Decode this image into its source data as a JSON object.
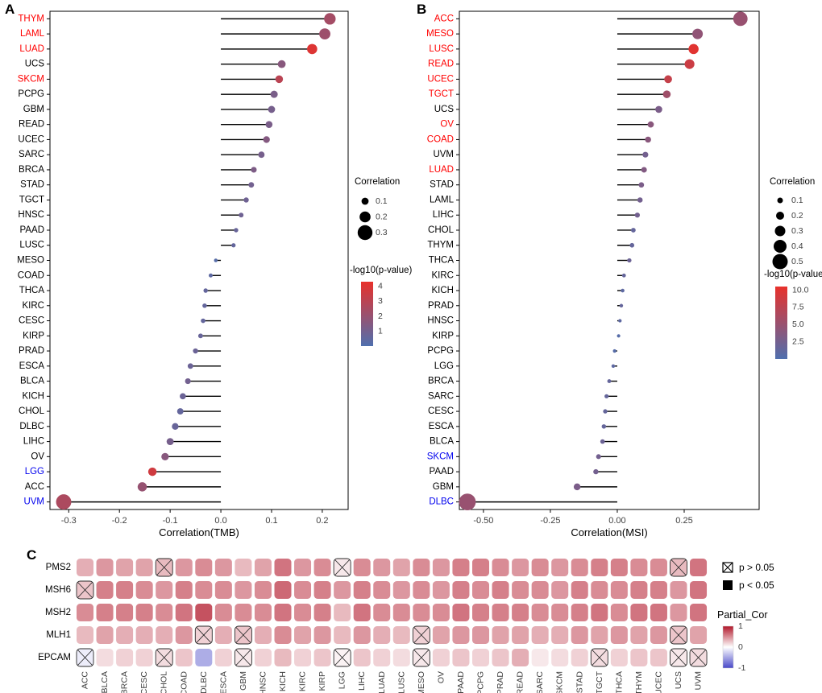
{
  "labels": {
    "panel_a": "A",
    "panel_b": "B",
    "panel_c": "C"
  },
  "palette": {
    "label_red": "#ff0000",
    "label_blue": "#0000ee",
    "label_black": "#000000",
    "dot_low": "#4f6fae",
    "dot_high": "#e8312b",
    "heat_pos": "#b2182b",
    "heat_neg": "#4848c8",
    "axis_text": "#404040",
    "stem": "#000000"
  },
  "chart_data": [
    {
      "id": "A",
      "type": "lollipop",
      "xlabel": "Correlation(TMB)",
      "xticks": [
        -0.3,
        -0.2,
        -0.1,
        0.0,
        0.1,
        0.2
      ],
      "xtick_labels": [
        "-0.3",
        "-0.2",
        "-0.1",
        "0.0",
        "0.1",
        "0.2"
      ],
      "xlim": [
        -0.337,
        0.251
      ],
      "size_legend": {
        "title": "Correlation",
        "values": [
          0.1,
          0.2,
          0.3
        ],
        "labels": [
          "0.1",
          "0.2",
          "0.3"
        ]
      },
      "color_legend": {
        "title": "-log10(p-value)",
        "ticks": [
          4,
          3,
          2,
          1
        ],
        "labels": [
          "4",
          "3",
          "2",
          "1"
        ],
        "domain": [
          0,
          4.3
        ]
      },
      "points": [
        {
          "label": "THYM",
          "group": "red",
          "value": 0.215,
          "logp": 2.4
        },
        {
          "label": "LAML",
          "group": "red",
          "value": 0.205,
          "logp": 2.2
        },
        {
          "label": "LUAD",
          "group": "red",
          "value": 0.18,
          "logp": 4.0
        },
        {
          "label": "UCS",
          "group": "black",
          "value": 0.12,
          "logp": 1.6
        },
        {
          "label": "SKCM",
          "group": "red",
          "value": 0.115,
          "logp": 3.0
        },
        {
          "label": "PCPG",
          "group": "black",
          "value": 0.105,
          "logp": 1.2
        },
        {
          "label": "GBM",
          "group": "black",
          "value": 0.1,
          "logp": 1.1
        },
        {
          "label": "READ",
          "group": "black",
          "value": 0.095,
          "logp": 1.2
        },
        {
          "label": "UCEC",
          "group": "black",
          "value": 0.09,
          "logp": 1.5
        },
        {
          "label": "SARC",
          "group": "black",
          "value": 0.08,
          "logp": 1.1
        },
        {
          "label": "BRCA",
          "group": "black",
          "value": 0.065,
          "logp": 1.3
        },
        {
          "label": "STAD",
          "group": "black",
          "value": 0.06,
          "logp": 1.0
        },
        {
          "label": "TGCT",
          "group": "black",
          "value": 0.05,
          "logp": 0.9
        },
        {
          "label": "HNSC",
          "group": "black",
          "value": 0.04,
          "logp": 0.9
        },
        {
          "label": "PAAD",
          "group": "black",
          "value": 0.03,
          "logp": 0.7
        },
        {
          "label": "LUSC",
          "group": "black",
          "value": 0.025,
          "logp": 0.6
        },
        {
          "label": "MESO",
          "group": "black",
          "value": -0.01,
          "logp": 0.2
        },
        {
          "label": "COAD",
          "group": "black",
          "value": -0.02,
          "logp": 0.4
        },
        {
          "label": "THCA",
          "group": "black",
          "value": -0.03,
          "logp": 0.6
        },
        {
          "label": "KIRC",
          "group": "black",
          "value": -0.032,
          "logp": 0.6
        },
        {
          "label": "CESC",
          "group": "black",
          "value": -0.035,
          "logp": 0.6
        },
        {
          "label": "KIRP",
          "group": "black",
          "value": -0.04,
          "logp": 0.7
        },
        {
          "label": "PRAD",
          "group": "black",
          "value": -0.05,
          "logp": 0.8
        },
        {
          "label": "ESCA",
          "group": "black",
          "value": -0.06,
          "logp": 0.8
        },
        {
          "label": "BLCA",
          "group": "black",
          "value": -0.065,
          "logp": 1.0
        },
        {
          "label": "KICH",
          "group": "black",
          "value": -0.075,
          "logp": 0.8
        },
        {
          "label": "CHOL",
          "group": "black",
          "value": -0.08,
          "logp": 0.6
        },
        {
          "label": "DLBC",
          "group": "black",
          "value": -0.09,
          "logp": 0.7
        },
        {
          "label": "LIHC",
          "group": "black",
          "value": -0.1,
          "logp": 1.1
        },
        {
          "label": "OV",
          "group": "black",
          "value": -0.11,
          "logp": 1.6
        },
        {
          "label": "LGG",
          "group": "blue",
          "value": -0.135,
          "logp": 3.6
        },
        {
          "label": "ACC",
          "group": "black",
          "value": -0.155,
          "logp": 2.0
        },
        {
          "label": "UVM",
          "group": "blue",
          "value": -0.31,
          "logp": 2.6
        }
      ]
    },
    {
      "id": "B",
      "type": "lollipop",
      "xlabel": "Correlation(MSI)",
      "xticks": [
        -0.5,
        -0.25,
        0.0,
        0.25
      ],
      "xtick_labels": [
        "-0.50",
        "-0.25",
        "0.00",
        "0.25"
      ],
      "xlim": [
        -0.59,
        0.53
      ],
      "size_legend": {
        "title": "Correlation",
        "values": [
          0.1,
          0.2,
          0.3,
          0.4,
          0.5
        ],
        "labels": [
          "0.1",
          "0.2",
          "0.3",
          "0.4",
          "0.5"
        ]
      },
      "color_legend": {
        "title": "-log10(p-value)",
        "ticks": [
          10.0,
          7.5,
          5.0,
          2.5
        ],
        "labels": [
          "10.0",
          "7.5",
          "5.0",
          "2.5"
        ],
        "domain": [
          0,
          10.5
        ]
      },
      "points": [
        {
          "label": "ACC",
          "group": "red",
          "value": 0.46,
          "logp": 5.0
        },
        {
          "label": "MESO",
          "group": "red",
          "value": 0.3,
          "logp": 4.5
        },
        {
          "label": "LUSC",
          "group": "red",
          "value": 0.285,
          "logp": 10.0
        },
        {
          "label": "READ",
          "group": "red",
          "value": 0.27,
          "logp": 8.5
        },
        {
          "label": "UCEC",
          "group": "red",
          "value": 0.19,
          "logp": 8.0
        },
        {
          "label": "TGCT",
          "group": "red",
          "value": 0.185,
          "logp": 5.5
        },
        {
          "label": "UCS",
          "group": "black",
          "value": 0.155,
          "logp": 3.0
        },
        {
          "label": "OV",
          "group": "red",
          "value": 0.125,
          "logp": 4.0
        },
        {
          "label": "COAD",
          "group": "red",
          "value": 0.115,
          "logp": 4.0
        },
        {
          "label": "UVM",
          "group": "black",
          "value": 0.105,
          "logp": 2.5
        },
        {
          "label": "LUAD",
          "group": "red",
          "value": 0.1,
          "logp": 3.5
        },
        {
          "label": "STAD",
          "group": "black",
          "value": 0.09,
          "logp": 3.0
        },
        {
          "label": "LAML",
          "group": "black",
          "value": 0.085,
          "logp": 2.5
        },
        {
          "label": "LIHC",
          "group": "black",
          "value": 0.075,
          "logp": 2.5
        },
        {
          "label": "CHOL",
          "group": "black",
          "value": 0.06,
          "logp": 1.5
        },
        {
          "label": "THYM",
          "group": "black",
          "value": 0.055,
          "logp": 1.5
        },
        {
          "label": "THCA",
          "group": "black",
          "value": 0.045,
          "logp": 2.0
        },
        {
          "label": "KIRC",
          "group": "black",
          "value": 0.025,
          "logp": 1.5
        },
        {
          "label": "KICH",
          "group": "black",
          "value": 0.02,
          "logp": 1.0
        },
        {
          "label": "PRAD",
          "group": "black",
          "value": 0.015,
          "logp": 1.5
        },
        {
          "label": "HNSC",
          "group": "black",
          "value": 0.01,
          "logp": 1.0
        },
        {
          "label": "KIRP",
          "group": "black",
          "value": 0.005,
          "logp": 0.5
        },
        {
          "label": "PCPG",
          "group": "black",
          "value": -0.01,
          "logp": 0.5
        },
        {
          "label": "LGG",
          "group": "black",
          "value": -0.015,
          "logp": 1.0
        },
        {
          "label": "BRCA",
          "group": "black",
          "value": -0.03,
          "logp": 1.5
        },
        {
          "label": "SARC",
          "group": "black",
          "value": -0.04,
          "logp": 1.5
        },
        {
          "label": "CESC",
          "group": "black",
          "value": -0.045,
          "logp": 1.5
        },
        {
          "label": "ESCA",
          "group": "black",
          "value": -0.05,
          "logp": 1.5
        },
        {
          "label": "BLCA",
          "group": "black",
          "value": -0.055,
          "logp": 2.0
        },
        {
          "label": "SKCM",
          "group": "blue",
          "value": -0.07,
          "logp": 2.5
        },
        {
          "label": "PAAD",
          "group": "black",
          "value": -0.08,
          "logp": 2.5
        },
        {
          "label": "GBM",
          "group": "black",
          "value": -0.15,
          "logp": 3.0
        },
        {
          "label": "DLBC",
          "group": "blue",
          "value": -0.56,
          "logp": 5.0
        }
      ]
    },
    {
      "id": "C",
      "type": "heatmap",
      "rows": [
        "PMS2",
        "MSH6",
        "MSH2",
        "MLH1",
        "EPCAM"
      ],
      "columns": [
        "ACC",
        "BLCA",
        "BRCA",
        "CESC",
        "CHOL",
        "COAD",
        "DLBC",
        "ESCA",
        "GBM",
        "HNSC",
        "KICH",
        "KIRC",
        "KIRP",
        "LGG",
        "LIHC",
        "LUAD",
        "LUSC",
        "MESO",
        "OV",
        "PAAD",
        "PCPG",
        "PRAD",
        "READ",
        "SARC",
        "SKCM",
        "STAD",
        "TGCT",
        "THCA",
        "THYM",
        "UCEC",
        "UCS",
        "UVM"
      ],
      "values": [
        [
          0.35,
          0.45,
          0.4,
          0.4,
          0.3,
          0.45,
          0.5,
          0.45,
          0.3,
          0.4,
          0.6,
          0.45,
          0.5,
          0.1,
          0.5,
          0.45,
          0.4,
          0.5,
          0.45,
          0.55,
          0.55,
          0.5,
          0.45,
          0.5,
          0.45,
          0.5,
          0.55,
          0.55,
          0.5,
          0.5,
          0.3,
          0.6
        ],
        [
          0.25,
          0.55,
          0.55,
          0.5,
          0.45,
          0.55,
          0.5,
          0.5,
          0.45,
          0.5,
          0.65,
          0.5,
          0.55,
          0.45,
          0.55,
          0.5,
          0.45,
          0.5,
          0.45,
          0.55,
          0.5,
          0.55,
          0.5,
          0.5,
          0.45,
          0.55,
          0.5,
          0.5,
          0.55,
          0.55,
          0.45,
          0.6
        ],
        [
          0.5,
          0.55,
          0.55,
          0.55,
          0.5,
          0.6,
          0.75,
          0.5,
          0.5,
          0.5,
          0.6,
          0.5,
          0.55,
          0.3,
          0.6,
          0.5,
          0.5,
          0.5,
          0.5,
          0.6,
          0.55,
          0.55,
          0.55,
          0.5,
          0.5,
          0.55,
          0.6,
          0.5,
          0.6,
          0.6,
          0.45,
          0.6
        ],
        [
          0.3,
          0.4,
          0.35,
          0.35,
          0.35,
          0.45,
          0.2,
          0.35,
          0.25,
          0.35,
          0.5,
          0.4,
          0.45,
          0.3,
          0.45,
          0.35,
          0.3,
          0.2,
          0.4,
          0.45,
          0.45,
          0.4,
          0.4,
          0.35,
          0.35,
          0.45,
          0.4,
          0.45,
          0.4,
          0.45,
          0.25,
          0.4
        ],
        [
          -0.1,
          0.15,
          0.2,
          0.2,
          0.15,
          0.25,
          -0.45,
          0.2,
          0.1,
          0.2,
          0.3,
          0.2,
          0.25,
          0.05,
          0.25,
          0.2,
          0.15,
          0.1,
          0.2,
          0.25,
          0.2,
          0.25,
          0.35,
          0.1,
          0.15,
          0.2,
          0.15,
          0.2,
          0.25,
          0.25,
          0.1,
          0.15
        ]
      ],
      "sig": [
        [
          1,
          1,
          1,
          1,
          0,
          1,
          1,
          1,
          1,
          1,
          1,
          1,
          1,
          0,
          1,
          1,
          1,
          1,
          1,
          1,
          1,
          1,
          1,
          1,
          1,
          1,
          1,
          1,
          1,
          1,
          0,
          1
        ],
        [
          0,
          1,
          1,
          1,
          1,
          1,
          1,
          1,
          1,
          1,
          1,
          1,
          1,
          1,
          1,
          1,
          1,
          1,
          1,
          1,
          1,
          1,
          1,
          1,
          1,
          1,
          1,
          1,
          1,
          1,
          1,
          1
        ],
        [
          1,
          1,
          1,
          1,
          1,
          1,
          1,
          1,
          1,
          1,
          1,
          1,
          1,
          1,
          1,
          1,
          1,
          1,
          1,
          1,
          1,
          1,
          1,
          1,
          1,
          1,
          1,
          1,
          1,
          1,
          1,
          1
        ],
        [
          1,
          1,
          1,
          1,
          1,
          1,
          0,
          1,
          0,
          1,
          1,
          1,
          1,
          1,
          1,
          1,
          1,
          0,
          1,
          1,
          1,
          1,
          1,
          1,
          1,
          1,
          1,
          1,
          1,
          1,
          0,
          1
        ],
        [
          0,
          1,
          1,
          1,
          0,
          1,
          1,
          1,
          0,
          1,
          1,
          1,
          1,
          0,
          1,
          1,
          1,
          0,
          1,
          1,
          1,
          1,
          1,
          1,
          1,
          1,
          0,
          1,
          1,
          1,
          0,
          0
        ]
      ],
      "legend": {
        "p_gt": "p > 0.05",
        "p_lt": "p < 0.05",
        "color_title": "Partial_Cor",
        "color_ticks": [
          1,
          0,
          -1
        ],
        "color_tick_labels": [
          "1",
          "0",
          "-1"
        ]
      }
    }
  ]
}
